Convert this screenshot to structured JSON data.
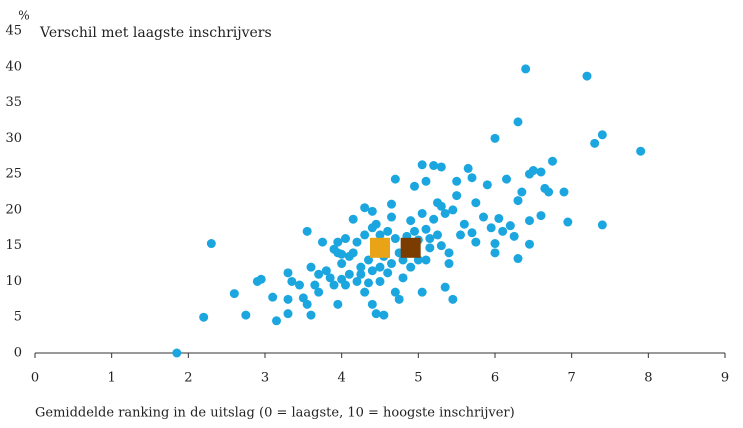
{
  "chart_data": {
    "type": "scatter",
    "title": "Verschil met laagste inschrijvers",
    "y_unit": "%",
    "x_label": "Gemiddelde ranking in de uitslag (0 = laagste, 10 = hoogste inschrijver)",
    "xlim": [
      0,
      9
    ],
    "xticks": [
      0,
      1,
      2,
      3,
      4,
      5,
      6,
      7,
      8,
      9
    ],
    "ylim": [
      0,
      45
    ],
    "yticks": [
      0,
      5,
      10,
      15,
      20,
      25,
      30,
      35,
      40,
      45
    ],
    "grid": false,
    "series": [
      {
        "color": "#1ba6df",
        "marker": "circle",
        "x": [
          1.85,
          2.2,
          2.3,
          2.6,
          2.75,
          2.9,
          2.95,
          3.1,
          3.15,
          3.3,
          3.3,
          3.35,
          3.3,
          3.45,
          3.5,
          3.55,
          3.55,
          3.6,
          3.6,
          3.65,
          3.7,
          3.7,
          3.75,
          3.8,
          3.85,
          3.9,
          3.9,
          3.95,
          3.95,
          4.0,
          4.0,
          4.05,
          4.05,
          4.1,
          4.1,
          4.15,
          4.15,
          4.2,
          4.2,
          4.25,
          4.25,
          4.3,
          4.3,
          4.35,
          4.35,
          4.4,
          4.4,
          4.4,
          4.4,
          4.45,
          4.45,
          4.5,
          4.5,
          4.5,
          4.55,
          4.55,
          4.6,
          4.6,
          4.65,
          4.65,
          4.65,
          4.7,
          4.7,
          4.7,
          4.75,
          4.75,
          4.8,
          4.8,
          4.85,
          4.9,
          4.9,
          4.95,
          4.95,
          5.0,
          5.0,
          5.05,
          5.05,
          5.05,
          5.1,
          5.1,
          5.1,
          5.15,
          5.15,
          5.2,
          5.2,
          5.25,
          5.25,
          5.3,
          5.3,
          5.3,
          5.35,
          5.35,
          5.4,
          5.4,
          5.45,
          5.45,
          5.5,
          5.5,
          5.55,
          5.6,
          5.65,
          5.7,
          5.7,
          5.75,
          5.75,
          5.85,
          5.9,
          5.95,
          6.0,
          6.0,
          6.0,
          6.05,
          6.1,
          6.15,
          6.2,
          6.25,
          6.3,
          6.3,
          6.3,
          6.35,
          6.4,
          6.45,
          6.45,
          6.45,
          6.5,
          6.6,
          6.6,
          6.65,
          6.7,
          6.75,
          6.9,
          6.95,
          7.2,
          7.3,
          7.4,
          7.4,
          7.9,
          4.0,
          4.3,
          3.95
        ],
        "values": [
          0,
          5,
          15.3,
          8.3,
          5.3,
          10,
          10.3,
          7.8,
          4.5,
          11.2,
          7.5,
          10,
          5.5,
          9.5,
          7.7,
          6.8,
          17,
          12,
          5.3,
          9.5,
          11,
          8.5,
          15.5,
          11.5,
          10.5,
          9.5,
          14.5,
          15.5,
          6.8,
          12.5,
          10.3,
          16,
          9.5,
          11,
          13.5,
          18.7,
          14,
          10,
          15.5,
          12,
          11,
          20.3,
          16.5,
          13,
          9.8,
          19.8,
          17.5,
          11.5,
          6.8,
          18,
          5.5,
          16.5,
          12,
          10,
          5.3,
          13.5,
          17,
          11.2,
          20.8,
          19,
          12.5,
          24.3,
          16,
          8.5,
          7.5,
          14,
          13,
          10.5,
          16.3,
          12,
          18.5,
          23.3,
          17,
          15.8,
          13,
          26.3,
          19.5,
          8.5,
          24,
          17.3,
          13,
          16,
          14.7,
          26.2,
          18.7,
          21,
          16.5,
          26,
          20.5,
          15,
          19.5,
          9.2,
          14,
          12.5,
          7.5,
          20,
          24,
          22,
          16.5,
          18,
          25.8,
          24.5,
          16.8,
          21,
          15.5,
          19,
          23.5,
          17.5,
          30,
          15.3,
          14,
          18.8,
          17,
          24.3,
          17.8,
          16.3,
          32.3,
          13.2,
          21.3,
          22.5,
          39.7,
          25,
          18.5,
          15.2,
          25.5,
          25.3,
          19.2,
          23,
          22.5,
          26.8,
          22.5,
          18.3,
          38.7,
          29.3,
          30.5,
          17.9,
          28.2,
          13.8,
          8.5,
          14
        ]
      },
      {
        "color": "#e8a317",
        "marker": "square",
        "x": [
          4.5
        ],
        "values": [
          14.7
        ]
      },
      {
        "color": "#7b3c00",
        "marker": "square",
        "x": [
          4.9
        ],
        "values": [
          14.7
        ]
      }
    ]
  }
}
